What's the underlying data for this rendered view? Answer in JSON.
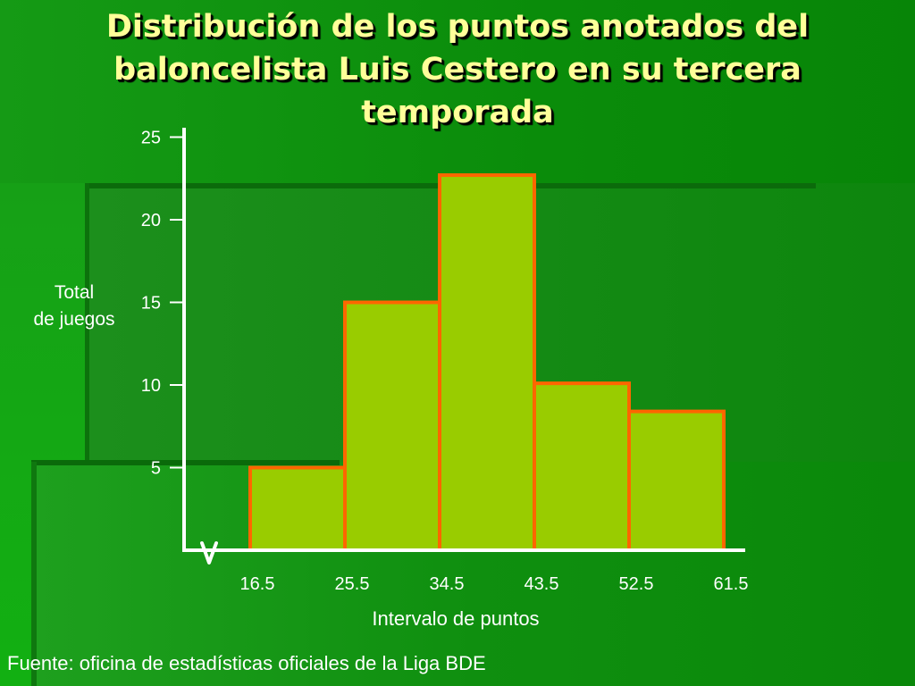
{
  "slide": {
    "title": "Distribución de los puntos anotados del baloncelista Luis Cestero en su tercera temporada",
    "source": "Fuente: oficina de estadísticas oficiales de la Liga BDE"
  },
  "colors": {
    "bar_fill": "#99cc00",
    "bar_stroke": "#ff6600",
    "axis": "#ffffff",
    "title": "#ffff99"
  },
  "chart_data": {
    "type": "bar",
    "subtype": "histogram",
    "title": "Distribución de los puntos anotados del baloncelista Luis Cestero en su tercera temporada",
    "xlabel": "Intervalo de puntos",
    "ylabel_lines": [
      "Total",
      "de juegos"
    ],
    "bin_edges": [
      16.5,
      25.5,
      34.5,
      43.5,
      52.5,
      61.5
    ],
    "x_tick_labels": [
      "16.5",
      "25.5",
      "34.5",
      "43.5",
      "52.5",
      "61.5"
    ],
    "values": [
      5,
      15,
      22.7,
      10.1,
      8.4
    ],
    "y_ticks": [
      5,
      10,
      15,
      20,
      25
    ],
    "y_tick_labels": [
      "5",
      "10",
      "15",
      "20",
      "25"
    ],
    "ylim": [
      0,
      25
    ],
    "axis_break": true,
    "grid": false,
    "legend": "none"
  }
}
